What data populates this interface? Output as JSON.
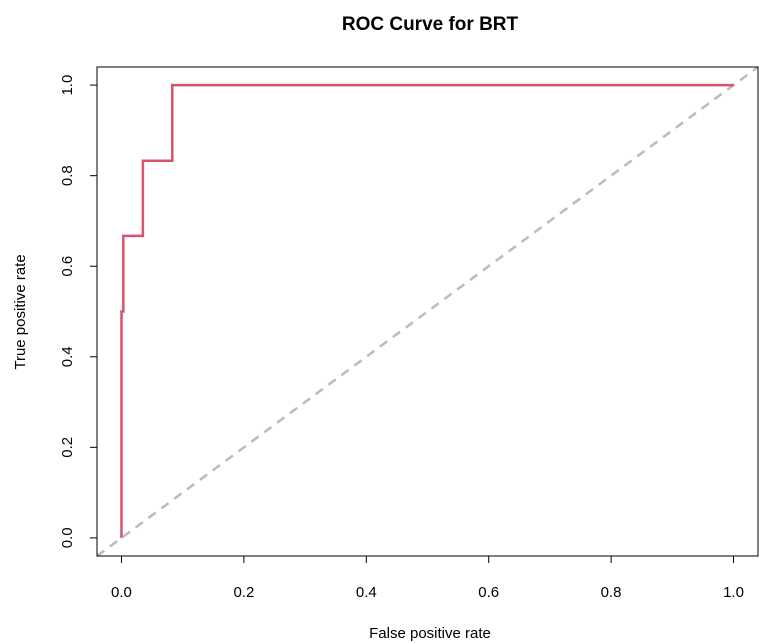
{
  "chart_data": {
    "type": "line",
    "title": "ROC Curve for BRT",
    "xlabel": "False positive rate",
    "ylabel": "True positive rate",
    "xlim": [
      -0.04,
      1.04
    ],
    "ylim": [
      -0.04,
      1.04
    ],
    "x_ticks": [
      "0.0",
      "0.2",
      "0.4",
      "0.6",
      "0.8",
      "1.0"
    ],
    "y_ticks": [
      "0.0",
      "0.2",
      "0.4",
      "0.6",
      "0.8",
      "1.0"
    ],
    "grid": false,
    "legend": "none",
    "series": [
      {
        "color": "#d6546c",
        "style": "solid",
        "x": [
          0.0,
          0.0,
          0.0,
          0.0,
          0.003,
          0.003,
          0.003,
          0.035,
          0.035,
          0.083,
          0.083,
          1.0
        ],
        "y": [
          0.0,
          0.333,
          0.333,
          0.5,
          0.5,
          0.667,
          0.667,
          0.667,
          0.833,
          0.833,
          1.0,
          1.0
        ]
      },
      {
        "color": "#bbbbbb",
        "style": "dashed",
        "x": [
          -0.04,
          1.04
        ],
        "y": [
          -0.04,
          1.04
        ]
      }
    ]
  }
}
